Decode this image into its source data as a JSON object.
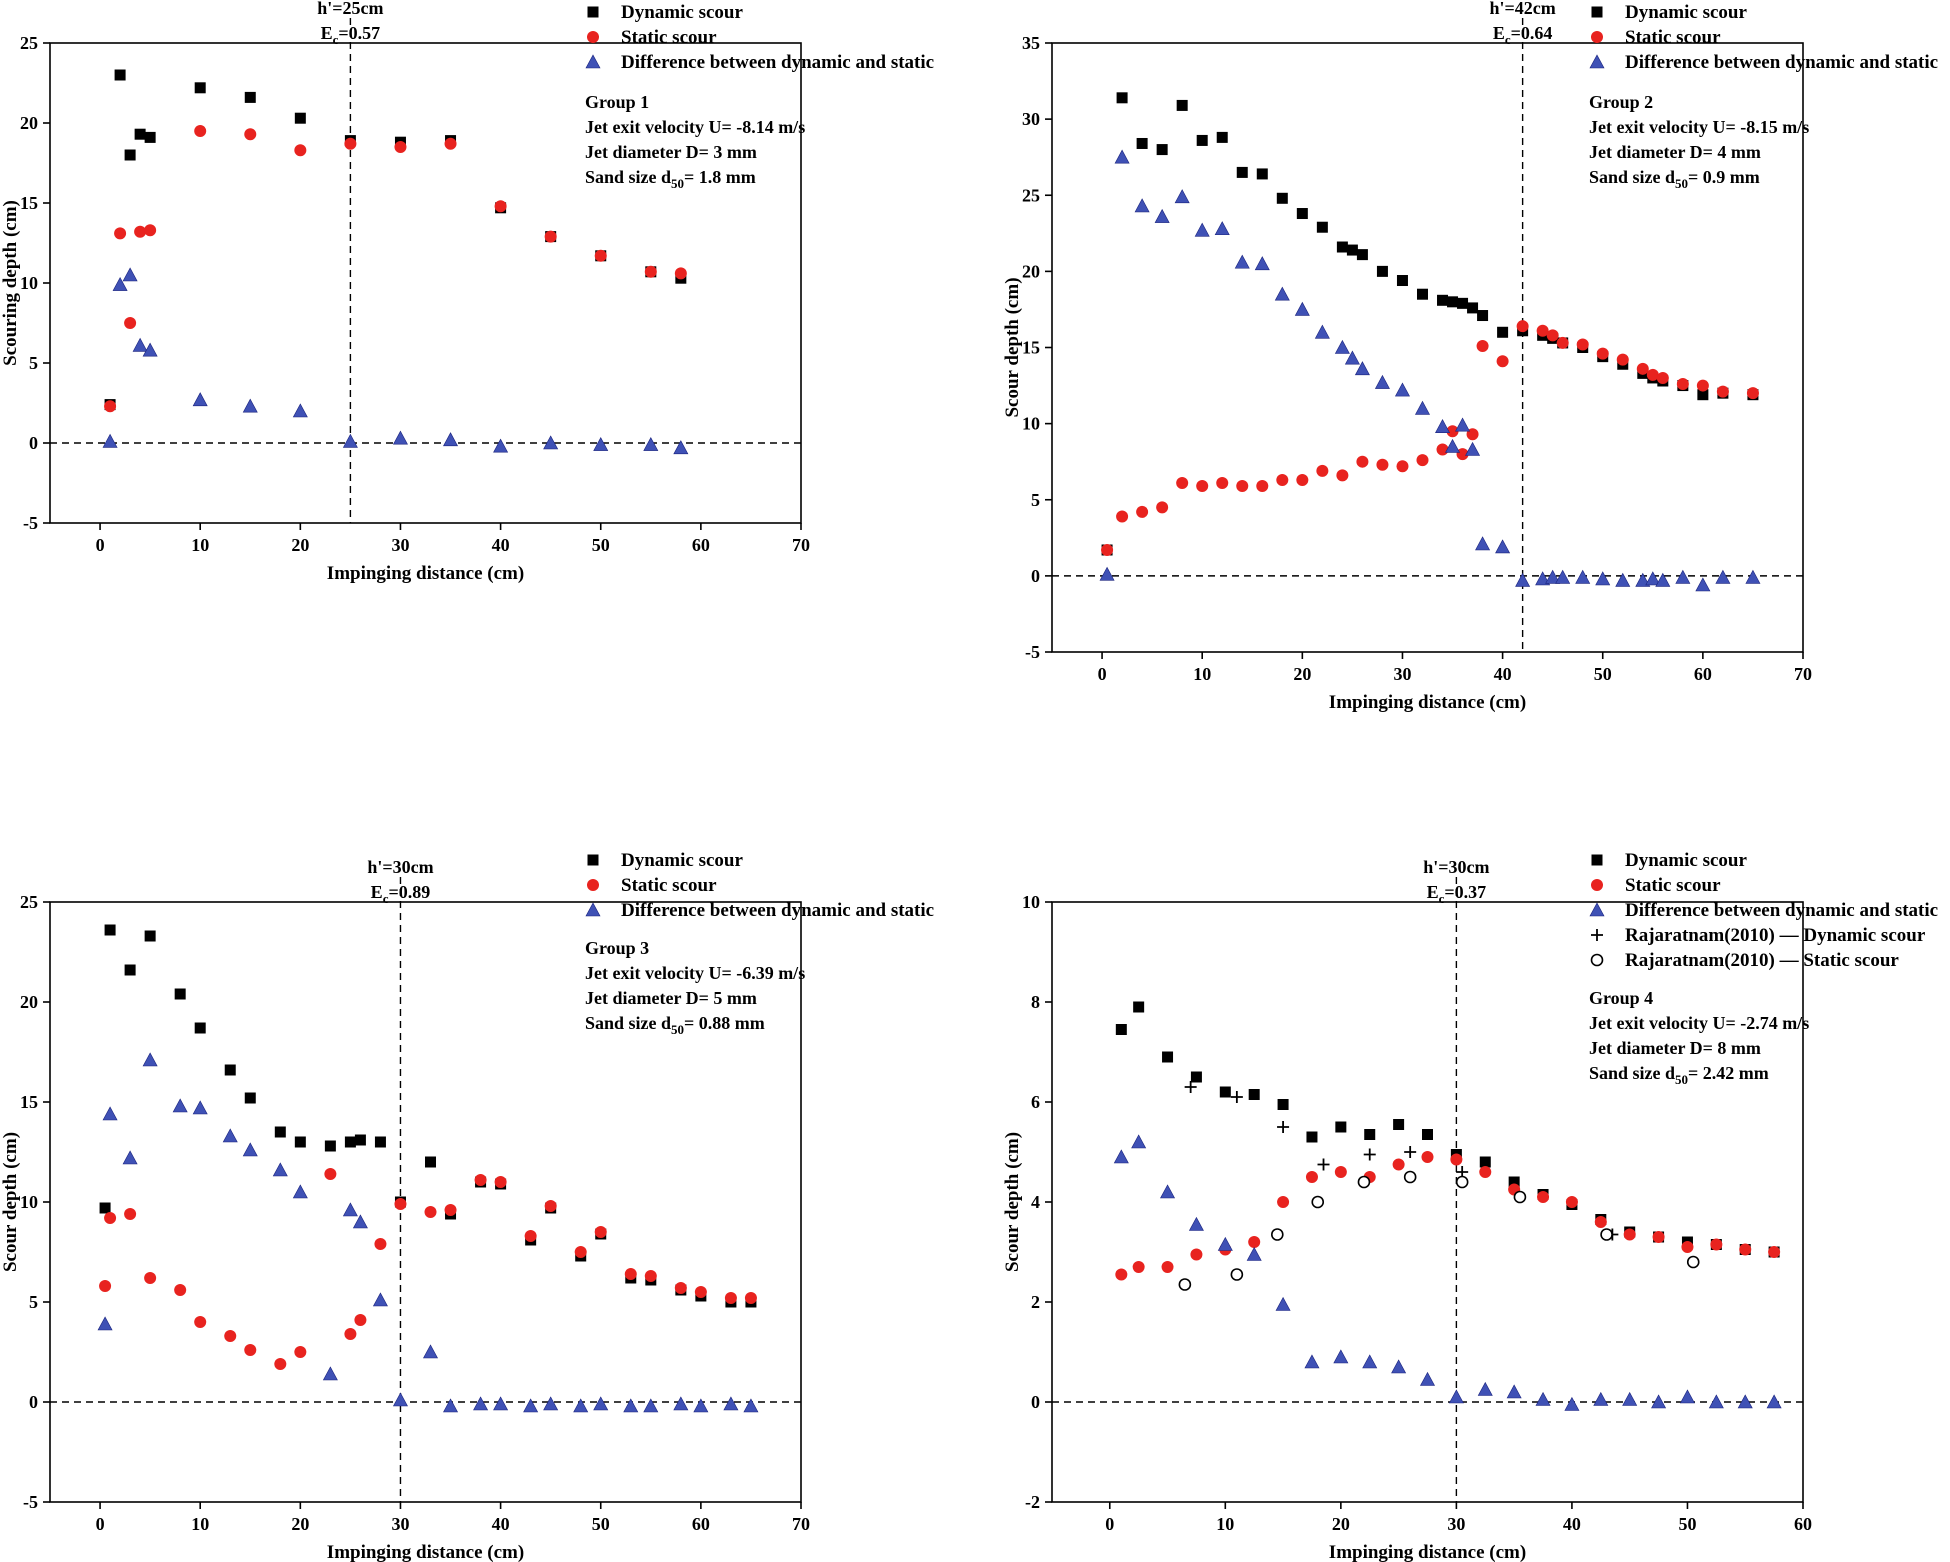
{
  "colors": {
    "dynamic": "#000000",
    "static": "#e8231f",
    "difference": "#3f51b5",
    "marker_stroke": "#1a237e"
  },
  "chart_data": [
    {
      "type": "scatter",
      "xlabel": "Impinging distance (cm)",
      "ylabel": "Scouring depth (cm)",
      "xlim": [
        -5,
        70
      ],
      "ylim": [
        -5,
        25
      ],
      "xticks": [
        0,
        10,
        20,
        30,
        40,
        50,
        60,
        70
      ],
      "yticks": [
        -5,
        0,
        5,
        10,
        15,
        20,
        25
      ],
      "legend_position": "top-right",
      "vline": {
        "x": 25,
        "label_main": "h'=25cm",
        "label_e": "E",
        "label_e_sub": "c",
        "label_e_value": "=0.57"
      },
      "annotation": {
        "group": "Group 1",
        "velocity": "Jet exit velocity U= -8.14 m/s",
        "diameter": "Jet diameter D= 3 mm",
        "sand_prefix": "Sand size d",
        "sand_sub": "50",
        "sand_value": "= 1.8 mm"
      },
      "series": [
        {
          "name": "Dynamic scour",
          "marker": "square",
          "color": "#000000",
          "x": [
            1,
            2,
            3,
            4,
            5,
            10,
            15,
            20,
            25,
            30,
            35,
            40,
            45,
            50,
            55,
            58
          ],
          "y": [
            2.4,
            23.0,
            18.0,
            19.3,
            19.1,
            22.2,
            21.6,
            20.3,
            18.9,
            18.8,
            18.9,
            14.7,
            12.9,
            11.7,
            10.7,
            10.3
          ]
        },
        {
          "name": "Static scour",
          "marker": "circle",
          "color": "#e8231f",
          "x": [
            1,
            2,
            3,
            4,
            5,
            10,
            15,
            20,
            25,
            30,
            35,
            40,
            45,
            50,
            55,
            58
          ],
          "y": [
            2.3,
            13.1,
            7.5,
            13.2,
            13.3,
            19.5,
            19.3,
            18.3,
            18.7,
            18.5,
            18.7,
            14.8,
            12.9,
            11.7,
            10.7,
            10.6
          ]
        },
        {
          "name": "Difference between dynamic and static",
          "marker": "triangle",
          "color": "#3f51b5",
          "x": [
            1,
            2,
            3,
            4,
            5,
            10,
            15,
            20,
            25,
            30,
            35,
            40,
            45,
            50,
            55,
            58
          ],
          "y": [
            0.1,
            9.9,
            10.5,
            6.1,
            5.8,
            2.7,
            2.3,
            2.0,
            0.1,
            0.3,
            0.2,
            -0.2,
            0.0,
            -0.1,
            -0.1,
            -0.3
          ]
        }
      ]
    },
    {
      "type": "scatter",
      "xlabel": "Impinging distance (cm)",
      "ylabel": "Scour depth (cm)",
      "xlim": [
        -5,
        70
      ],
      "ylim": [
        -5,
        35
      ],
      "xticks": [
        0,
        10,
        20,
        30,
        40,
        50,
        60,
        70
      ],
      "yticks": [
        -5,
        0,
        5,
        10,
        15,
        20,
        25,
        30,
        35
      ],
      "legend_position": "top-right",
      "vline": {
        "x": 42,
        "label_main": "h'=42cm",
        "label_e": "E",
        "label_e_sub": "c",
        "label_e_value": "=0.64"
      },
      "annotation": {
        "group": "Group 2",
        "velocity": "Jet exit velocity U= -8.15 m/s",
        "diameter": "Jet diameter D= 4 mm",
        "sand_prefix": "Sand size d",
        "sand_sub": "50",
        "sand_value": "= 0.9 mm"
      },
      "series": [
        {
          "name": "Dynamic scour",
          "marker": "square",
          "color": "#000000",
          "x": [
            0.5,
            2,
            4,
            6,
            8,
            10,
            12,
            14,
            16,
            18,
            20,
            22,
            24,
            25,
            26,
            28,
            30,
            32,
            34,
            35,
            36,
            37,
            38,
            40,
            42,
            44,
            45,
            46,
            48,
            50,
            52,
            54,
            55,
            56,
            58,
            60,
            62,
            65
          ],
          "y": [
            1.7,
            31.4,
            28.4,
            28.0,
            30.9,
            28.6,
            28.8,
            26.5,
            26.4,
            24.8,
            23.8,
            22.9,
            21.6,
            21.4,
            21.1,
            20.0,
            19.4,
            18.5,
            18.1,
            18.0,
            17.9,
            17.6,
            17.1,
            16.0,
            16.1,
            15.8,
            15.6,
            15.3,
            15.0,
            14.4,
            13.9,
            13.3,
            13.0,
            12.8,
            12.5,
            11.9,
            12.0,
            11.9
          ]
        },
        {
          "name": "Static scour",
          "marker": "circle",
          "color": "#e8231f",
          "x": [
            0.5,
            2,
            4,
            6,
            8,
            10,
            12,
            14,
            16,
            18,
            20,
            22,
            24,
            26,
            28,
            30,
            32,
            34,
            35,
            36,
            37,
            38,
            40,
            42,
            44,
            45,
            46,
            48,
            50,
            52,
            54,
            55,
            56,
            58,
            60,
            62,
            65
          ],
          "y": [
            1.7,
            3.9,
            4.2,
            4.5,
            6.1,
            5.9,
            6.1,
            5.9,
            5.9,
            6.3,
            6.3,
            6.9,
            6.6,
            7.5,
            7.3,
            7.2,
            7.6,
            8.3,
            9.5,
            8.0,
            9.3,
            15.1,
            14.1,
            16.4,
            16.1,
            15.8,
            15.3,
            15.2,
            14.6,
            14.2,
            13.6,
            13.2,
            13.0,
            12.6,
            12.5,
            12.1,
            12.0
          ]
        },
        {
          "name": "Difference between dynamic and static",
          "marker": "triangle",
          "color": "#3f51b5",
          "x": [
            0.5,
            2,
            4,
            6,
            8,
            10,
            12,
            14,
            16,
            18,
            20,
            22,
            24,
            25,
            26,
            28,
            30,
            32,
            34,
            35,
            36,
            37,
            38,
            40,
            42,
            44,
            45,
            46,
            48,
            50,
            52,
            54,
            55,
            56,
            58,
            60,
            62,
            65
          ],
          "y": [
            0.1,
            27.5,
            24.3,
            23.6,
            24.9,
            22.7,
            22.8,
            20.6,
            20.5,
            18.5,
            17.5,
            16.0,
            15.0,
            14.3,
            13.6,
            12.7,
            12.2,
            11.0,
            9.8,
            8.5,
            9.9,
            8.3,
            2.1,
            1.9,
            -0.3,
            -0.2,
            -0.1,
            -0.1,
            -0.1,
            -0.2,
            -0.3,
            -0.3,
            -0.2,
            -0.3,
            -0.1,
            -0.6,
            -0.1,
            -0.1
          ]
        }
      ]
    },
    {
      "type": "scatter",
      "xlabel": "Impinging distance (cm)",
      "ylabel": "Scour depth (cm)",
      "xlim": [
        -5,
        70
      ],
      "ylim": [
        -5,
        25
      ],
      "xticks": [
        0,
        10,
        20,
        30,
        40,
        50,
        60,
        70
      ],
      "yticks": [
        -5,
        0,
        5,
        10,
        15,
        20,
        25
      ],
      "legend_position": "top-right",
      "vline": {
        "x": 30,
        "label_main": "h'=30cm",
        "label_e": "E",
        "label_e_sub": "c",
        "label_e_value": "=0.89"
      },
      "annotation": {
        "group": "Group 3",
        "velocity": "Jet exit velocity U= -6.39 m/s",
        "diameter": "Jet diameter D= 5 mm",
        "sand_prefix": "Sand size d",
        "sand_sub": "50",
        "sand_value": "= 0.88 mm"
      },
      "series": [
        {
          "name": "Dynamic scour",
          "marker": "square",
          "color": "#000000",
          "x": [
            0.5,
            1,
            3,
            5,
            8,
            10,
            13,
            15,
            18,
            20,
            23,
            25,
            26,
            28,
            30,
            33,
            35,
            38,
            40,
            43,
            45,
            48,
            50,
            53,
            55,
            58,
            60,
            63,
            65
          ],
          "y": [
            9.7,
            23.6,
            21.6,
            23.3,
            20.4,
            18.7,
            16.6,
            15.2,
            13.5,
            13.0,
            12.8,
            13.0,
            13.1,
            13.0,
            10.0,
            12.0,
            9.4,
            11.0,
            10.9,
            8.1,
            9.7,
            7.3,
            8.4,
            6.2,
            6.1,
            5.6,
            5.3,
            5.0,
            5.0
          ]
        },
        {
          "name": "Static scour",
          "marker": "circle",
          "color": "#e8231f",
          "x": [
            0.5,
            1,
            3,
            5,
            8,
            10,
            13,
            15,
            18,
            20,
            23,
            25,
            26,
            28,
            30,
            33,
            35,
            38,
            40,
            43,
            45,
            48,
            50,
            53,
            55,
            58,
            60,
            63,
            65
          ],
          "y": [
            5.8,
            9.2,
            9.4,
            6.2,
            5.6,
            4.0,
            3.3,
            2.6,
            1.9,
            2.5,
            11.4,
            3.4,
            4.1,
            7.9,
            9.9,
            9.5,
            9.6,
            11.1,
            11.0,
            8.3,
            9.8,
            7.5,
            8.5,
            6.4,
            6.3,
            5.7,
            5.5,
            5.2,
            5.2
          ]
        },
        {
          "name": "Difference between dynamic and static",
          "marker": "triangle",
          "color": "#3f51b5",
          "x": [
            0.5,
            1,
            3,
            5,
            8,
            10,
            13,
            15,
            18,
            20,
            23,
            25,
            26,
            28,
            30,
            33,
            35,
            38,
            40,
            43,
            45,
            48,
            50,
            53,
            55,
            58,
            60,
            63,
            65
          ],
          "y": [
            3.9,
            14.4,
            12.2,
            17.1,
            14.8,
            14.7,
            13.3,
            12.6,
            11.6,
            10.5,
            1.4,
            9.6,
            9.0,
            5.1,
            0.1,
            2.5,
            -0.2,
            -0.1,
            -0.1,
            -0.2,
            -0.1,
            -0.2,
            -0.1,
            -0.2,
            -0.2,
            -0.1,
            -0.2,
            -0.1,
            -0.2
          ]
        }
      ]
    },
    {
      "type": "scatter",
      "xlabel": "Impinging distance (cm)",
      "ylabel": "Scour depth (cm)",
      "xlim": [
        -5,
        60
      ],
      "ylim": [
        -2,
        10
      ],
      "xticks": [
        0,
        10,
        20,
        30,
        40,
        50,
        60
      ],
      "yticks": [
        -2,
        0,
        2,
        4,
        6,
        8,
        10
      ],
      "legend_position": "top-right",
      "vline": {
        "x": 30,
        "label_main": "h'=30cm",
        "label_e": "E",
        "label_e_sub": "c",
        "label_e_value": "=0.37"
      },
      "annotation": {
        "group": "Group 4",
        "velocity": "Jet exit velocity U= -2.74 m/s",
        "diameter": "Jet diameter D= 8 mm",
        "sand_prefix": "Sand size d",
        "sand_sub": "50",
        "sand_value": "= 2.42 mm"
      },
      "series": [
        {
          "name": "Dynamic scour",
          "marker": "square",
          "color": "#000000",
          "x": [
            1,
            2.5,
            5,
            7.5,
            10,
            12.5,
            15,
            17.5,
            20,
            22.5,
            25,
            27.5,
            30,
            32.5,
            35,
            37.5,
            40,
            42.5,
            45,
            47.5,
            50,
            52.5,
            55,
            57.5
          ],
          "y": [
            7.45,
            7.9,
            6.9,
            6.5,
            6.2,
            6.15,
            5.95,
            5.3,
            5.5,
            5.35,
            5.55,
            5.35,
            4.95,
            4.8,
            4.4,
            4.15,
            3.95,
            3.65,
            3.4,
            3.3,
            3.2,
            3.15,
            3.05,
            3.0
          ]
        },
        {
          "name": "Static scour",
          "marker": "circle",
          "color": "#e8231f",
          "x": [
            1,
            2.5,
            5,
            7.5,
            10,
            12.5,
            15,
            17.5,
            20,
            22.5,
            25,
            27.5,
            30,
            32.5,
            35,
            37.5,
            40,
            42.5,
            45,
            47.5,
            50,
            52.5,
            55,
            57.5
          ],
          "y": [
            2.55,
            2.7,
            2.7,
            2.95,
            3.05,
            3.2,
            4.0,
            4.5,
            4.6,
            4.5,
            4.75,
            4.9,
            4.85,
            4.6,
            4.25,
            4.1,
            4.0,
            3.6,
            3.35,
            3.3,
            3.1,
            3.15,
            3.05,
            3.0
          ]
        },
        {
          "name": "Difference between dynamic and static",
          "marker": "triangle",
          "color": "#3f51b5",
          "x": [
            1,
            2.5,
            5,
            7.5,
            10,
            12.5,
            15,
            17.5,
            20,
            22.5,
            25,
            27.5,
            30,
            32.5,
            35,
            37.5,
            40,
            42.5,
            45,
            47.5,
            50,
            52.5,
            55,
            57.5
          ],
          "y": [
            4.9,
            5.2,
            4.2,
            3.55,
            3.15,
            2.95,
            1.95,
            0.8,
            0.9,
            0.8,
            0.7,
            0.45,
            0.1,
            0.25,
            0.2,
            0.05,
            -0.05,
            0.05,
            0.05,
            0.0,
            0.1,
            0.0,
            0.0,
            0.0
          ]
        },
        {
          "name": "Rajaratnam(2010) — Dynamic scour",
          "marker": "plus",
          "color": "#000000",
          "x": [
            7,
            11,
            15,
            18.5,
            22.5,
            26,
            30.5,
            43.5
          ],
          "y": [
            6.3,
            6.1,
            5.5,
            4.75,
            4.95,
            5.0,
            4.6,
            3.35
          ]
        },
        {
          "name": "Rajaratnam(2010) — Static scour",
          "marker": "open-circle",
          "color": "#000000",
          "x": [
            6.5,
            11,
            14.5,
            18,
            22,
            26,
            30.5,
            35.5,
            43,
            50.5
          ],
          "y": [
            2.35,
            2.55,
            3.35,
            4.0,
            4.4,
            4.5,
            4.4,
            4.1,
            3.35,
            2.8
          ]
        }
      ]
    }
  ]
}
